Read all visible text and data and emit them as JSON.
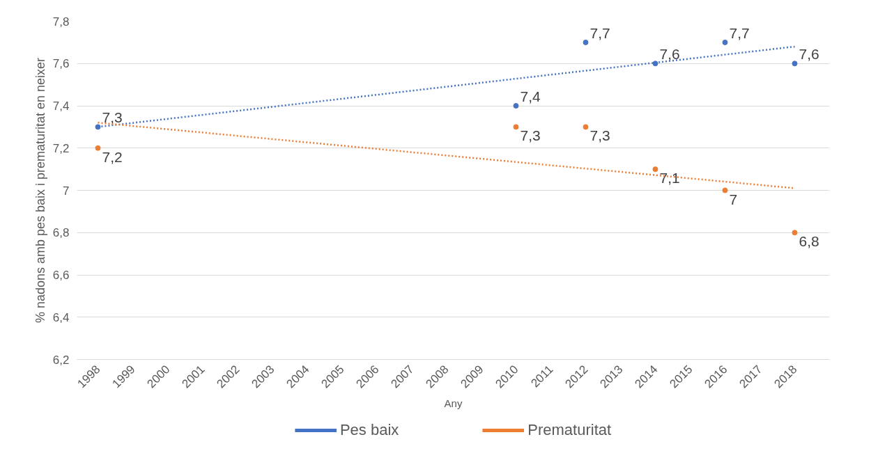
{
  "chart_data": {
    "type": "scatter",
    "xlabel": "Any",
    "ylabel": "% nadons amb pes baix i prematuritat en neixer",
    "xlim": [
      1997.4,
      2019
    ],
    "xticks": [
      1998,
      1999,
      2000,
      2001,
      2002,
      2003,
      2004,
      2005,
      2006,
      2007,
      2008,
      2009,
      2010,
      2011,
      2012,
      2013,
      2014,
      2015,
      2016,
      2017,
      2018
    ],
    "ylim": [
      6.2,
      7.8
    ],
    "yticks": [
      {
        "value": 6.2,
        "label": "6,2"
      },
      {
        "value": 6.4,
        "label": "6,4"
      },
      {
        "value": 6.6,
        "label": "6,6"
      },
      {
        "value": 6.8,
        "label": "6,8"
      },
      {
        "value": 7,
        "label": "7"
      },
      {
        "value": 7.2,
        "label": "7,2"
      },
      {
        "value": 7.4,
        "label": "7,4"
      },
      {
        "value": 7.6,
        "label": "7,6"
      },
      {
        "value": 7.8,
        "label": "7,8"
      }
    ],
    "grid": "y",
    "legend": "bottom",
    "series": [
      {
        "name": "Pes baix",
        "color": "#4472c4",
        "marker": "circle",
        "x": [
          1998,
          2010,
          2012,
          2014,
          2016,
          2018
        ],
        "values": [
          7.3,
          7.4,
          7.7,
          7.6,
          7.7,
          7.6
        ],
        "value_labels": [
          "7,3",
          "7,4",
          "7,7",
          "7,6",
          "7,7",
          "7,6"
        ]
      },
      {
        "name": "Prematuritat",
        "color": "#ed7d31",
        "marker": "circle",
        "x": [
          1998,
          2010,
          2012,
          2014,
          2016,
          2018
        ],
        "values": [
          7.2,
          7.3,
          7.3,
          7.1,
          7,
          6.8
        ],
        "value_labels": [
          "7,2",
          "7,3",
          "7,3",
          "7,1",
          "7",
          "6,8"
        ]
      },
      {
        "type": "line",
        "line_style": "dotted",
        "color": "#4472c4",
        "x": [
          1998,
          2018
        ],
        "values": [
          7.3,
          7.68
        ]
      },
      {
        "type": "line",
        "line_style": "dotted",
        "color": "#ed7d31",
        "x": [
          1998,
          2018
        ],
        "values": [
          7.32,
          7.01
        ]
      }
    ]
  }
}
